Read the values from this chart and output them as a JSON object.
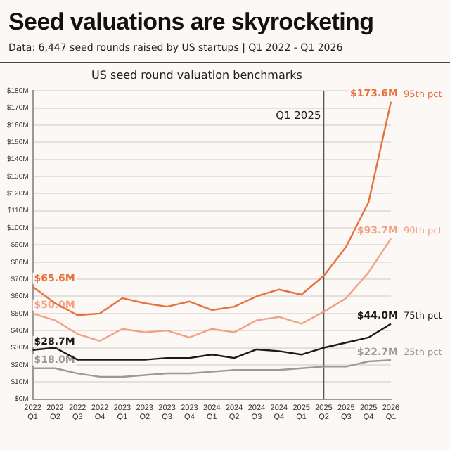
{
  "chart_data": {
    "type": "line",
    "title": "Seed valuations are skyrocketing",
    "subtitle": "Data: 6,447 seed rounds raised by US startups | Q1 2022 - Q1 2026",
    "annotations": [
      "US seed round valuation benchmarks"
    ],
    "categories": [
      "2022 Q1",
      "2022 Q2",
      "2022 Q3",
      "2022 Q4",
      "2023 Q1",
      "2023 Q2",
      "2023 Q3",
      "2023 Q4",
      "2024 Q1",
      "2024 Q2",
      "2024 Q3",
      "2024 Q4",
      "2025 Q1",
      "2025 Q2",
      "2025 Q3",
      "2025 Q4",
      "2026 Q1"
    ],
    "series": [
      {
        "name": "95th pct",
        "color": "#e8703c",
        "values": [
          65.6,
          56,
          49,
          50,
          59,
          56,
          54,
          57,
          52,
          54,
          60,
          64,
          61,
          72,
          89,
          115,
          173.6
        ],
        "value_labels": [
          "$65.6M",
          null,
          null,
          null,
          null,
          null,
          null,
          null,
          null,
          null,
          null,
          null,
          null,
          null,
          null,
          null,
          "$173.6M"
        ]
      },
      {
        "name": "90th pct",
        "color": "#f2a283",
        "values": [
          50.0,
          46,
          38,
          34,
          41,
          39,
          40,
          36,
          41,
          39,
          46,
          48,
          44,
          51,
          59,
          74,
          93.7
        ],
        "value_labels": [
          "$50.0M",
          null,
          null,
          null,
          null,
          null,
          null,
          null,
          null,
          null,
          null,
          null,
          null,
          null,
          null,
          null,
          "$93.7M"
        ]
      },
      {
        "name": "75th pct",
        "color": "#1a1a1a",
        "values": [
          28.7,
          30,
          23,
          23,
          23,
          23,
          24,
          24,
          26,
          24,
          29,
          28,
          26,
          30,
          33,
          36,
          44.0
        ],
        "value_labels": [
          "$28.7M",
          null,
          null,
          null,
          null,
          null,
          null,
          null,
          null,
          null,
          null,
          null,
          null,
          null,
          null,
          null,
          "$44.0M"
        ]
      },
      {
        "name": "25th pct",
        "color": "#9a9a9a",
        "values": [
          18.0,
          18,
          15,
          13,
          13,
          14,
          15,
          15,
          16,
          17,
          17,
          17,
          18,
          19,
          19,
          22,
          22.7
        ],
        "value_labels": [
          "$18.0M",
          null,
          null,
          null,
          null,
          null,
          null,
          null,
          null,
          null,
          null,
          null,
          null,
          null,
          null,
          null,
          "$22.7M"
        ]
      }
    ],
    "ylim": [
      0,
      180
    ],
    "yticks": [
      {
        "value": 0,
        "label": "$0M"
      },
      {
        "value": 10,
        "label": "$10M"
      },
      {
        "value": 20,
        "label": "$20M"
      },
      {
        "value": 30,
        "label": "$30M"
      },
      {
        "value": 40,
        "label": "$40M"
      },
      {
        "value": 50,
        "label": "$50M"
      },
      {
        "value": 60,
        "label": "$60M"
      },
      {
        "value": 70,
        "label": "$70M"
      },
      {
        "value": 80,
        "label": "$80M"
      },
      {
        "value": 90,
        "label": "$90M"
      },
      {
        "value": 100,
        "label": "$100M"
      },
      {
        "value": 110,
        "label": "$110M"
      },
      {
        "value": 120,
        "label": "$120M"
      },
      {
        "value": 130,
        "label": "$130M"
      },
      {
        "value": 140,
        "label": "$140M"
      },
      {
        "value": 150,
        "label": "$150M"
      },
      {
        "value": 160,
        "label": "$160M"
      },
      {
        "value": 170,
        "label": "$170M"
      },
      {
        "value": 180,
        "label": "$180M"
      }
    ],
    "ref_lines": [
      {
        "axis": "x",
        "value": "2025 Q2",
        "label": "Q1 2025",
        "color": "#555555"
      }
    ],
    "grid": "y",
    "legend": false,
    "marker": "none",
    "line_style": "solid"
  }
}
